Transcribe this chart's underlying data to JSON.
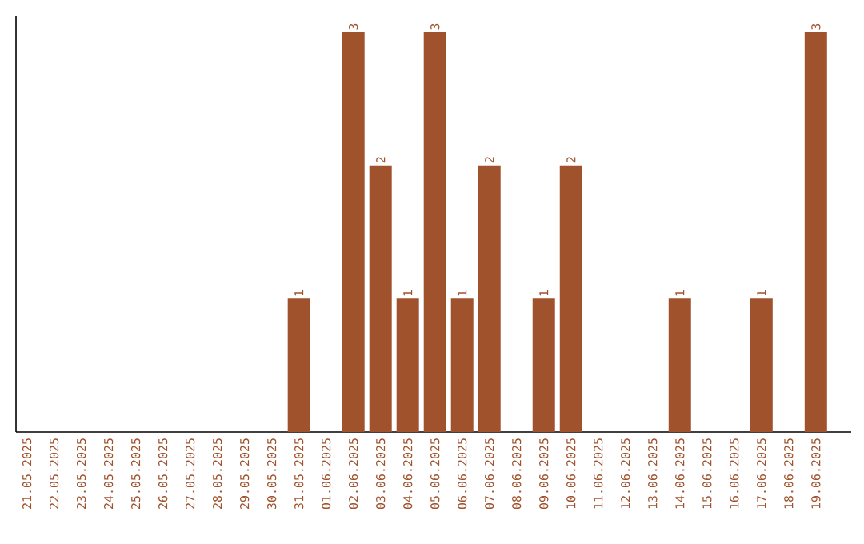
{
  "chart_data": {
    "type": "bar",
    "categories": [
      "21.05.2025",
      "22.05.2025",
      "23.05.2025",
      "24.05.2025",
      "25.05.2025",
      "26.05.2025",
      "27.05.2025",
      "28.05.2025",
      "29.05.2025",
      "30.05.2025",
      "31.05.2025",
      "01.06.2025",
      "02.06.2025",
      "03.06.2025",
      "04.06.2025",
      "05.06.2025",
      "06.06.2025",
      "07.06.2025",
      "08.06.2025",
      "09.06.2025",
      "10.06.2025",
      "11.06.2025",
      "12.06.2025",
      "13.06.2025",
      "14.06.2025",
      "15.06.2025",
      "16.06.2025",
      "17.06.2025",
      "18.06.2025",
      "19.06.2025"
    ],
    "values": [
      0,
      0,
      0,
      0,
      0,
      0,
      0,
      0,
      0,
      0,
      1,
      0,
      3,
      2,
      1,
      3,
      1,
      2,
      0,
      1,
      2,
      0,
      0,
      0,
      1,
      0,
      0,
      1,
      0,
      3
    ],
    "value_labels": [
      null,
      null,
      null,
      null,
      null,
      null,
      null,
      null,
      null,
      null,
      "1",
      null,
      "3",
      "2",
      "1",
      "3",
      "1",
      "2",
      null,
      "1",
      "2",
      null,
      null,
      null,
      "1",
      null,
      null,
      "1",
      null,
      "3"
    ],
    "color": "#a0522d",
    "tick_labels": "x",
    "grid": false
  }
}
